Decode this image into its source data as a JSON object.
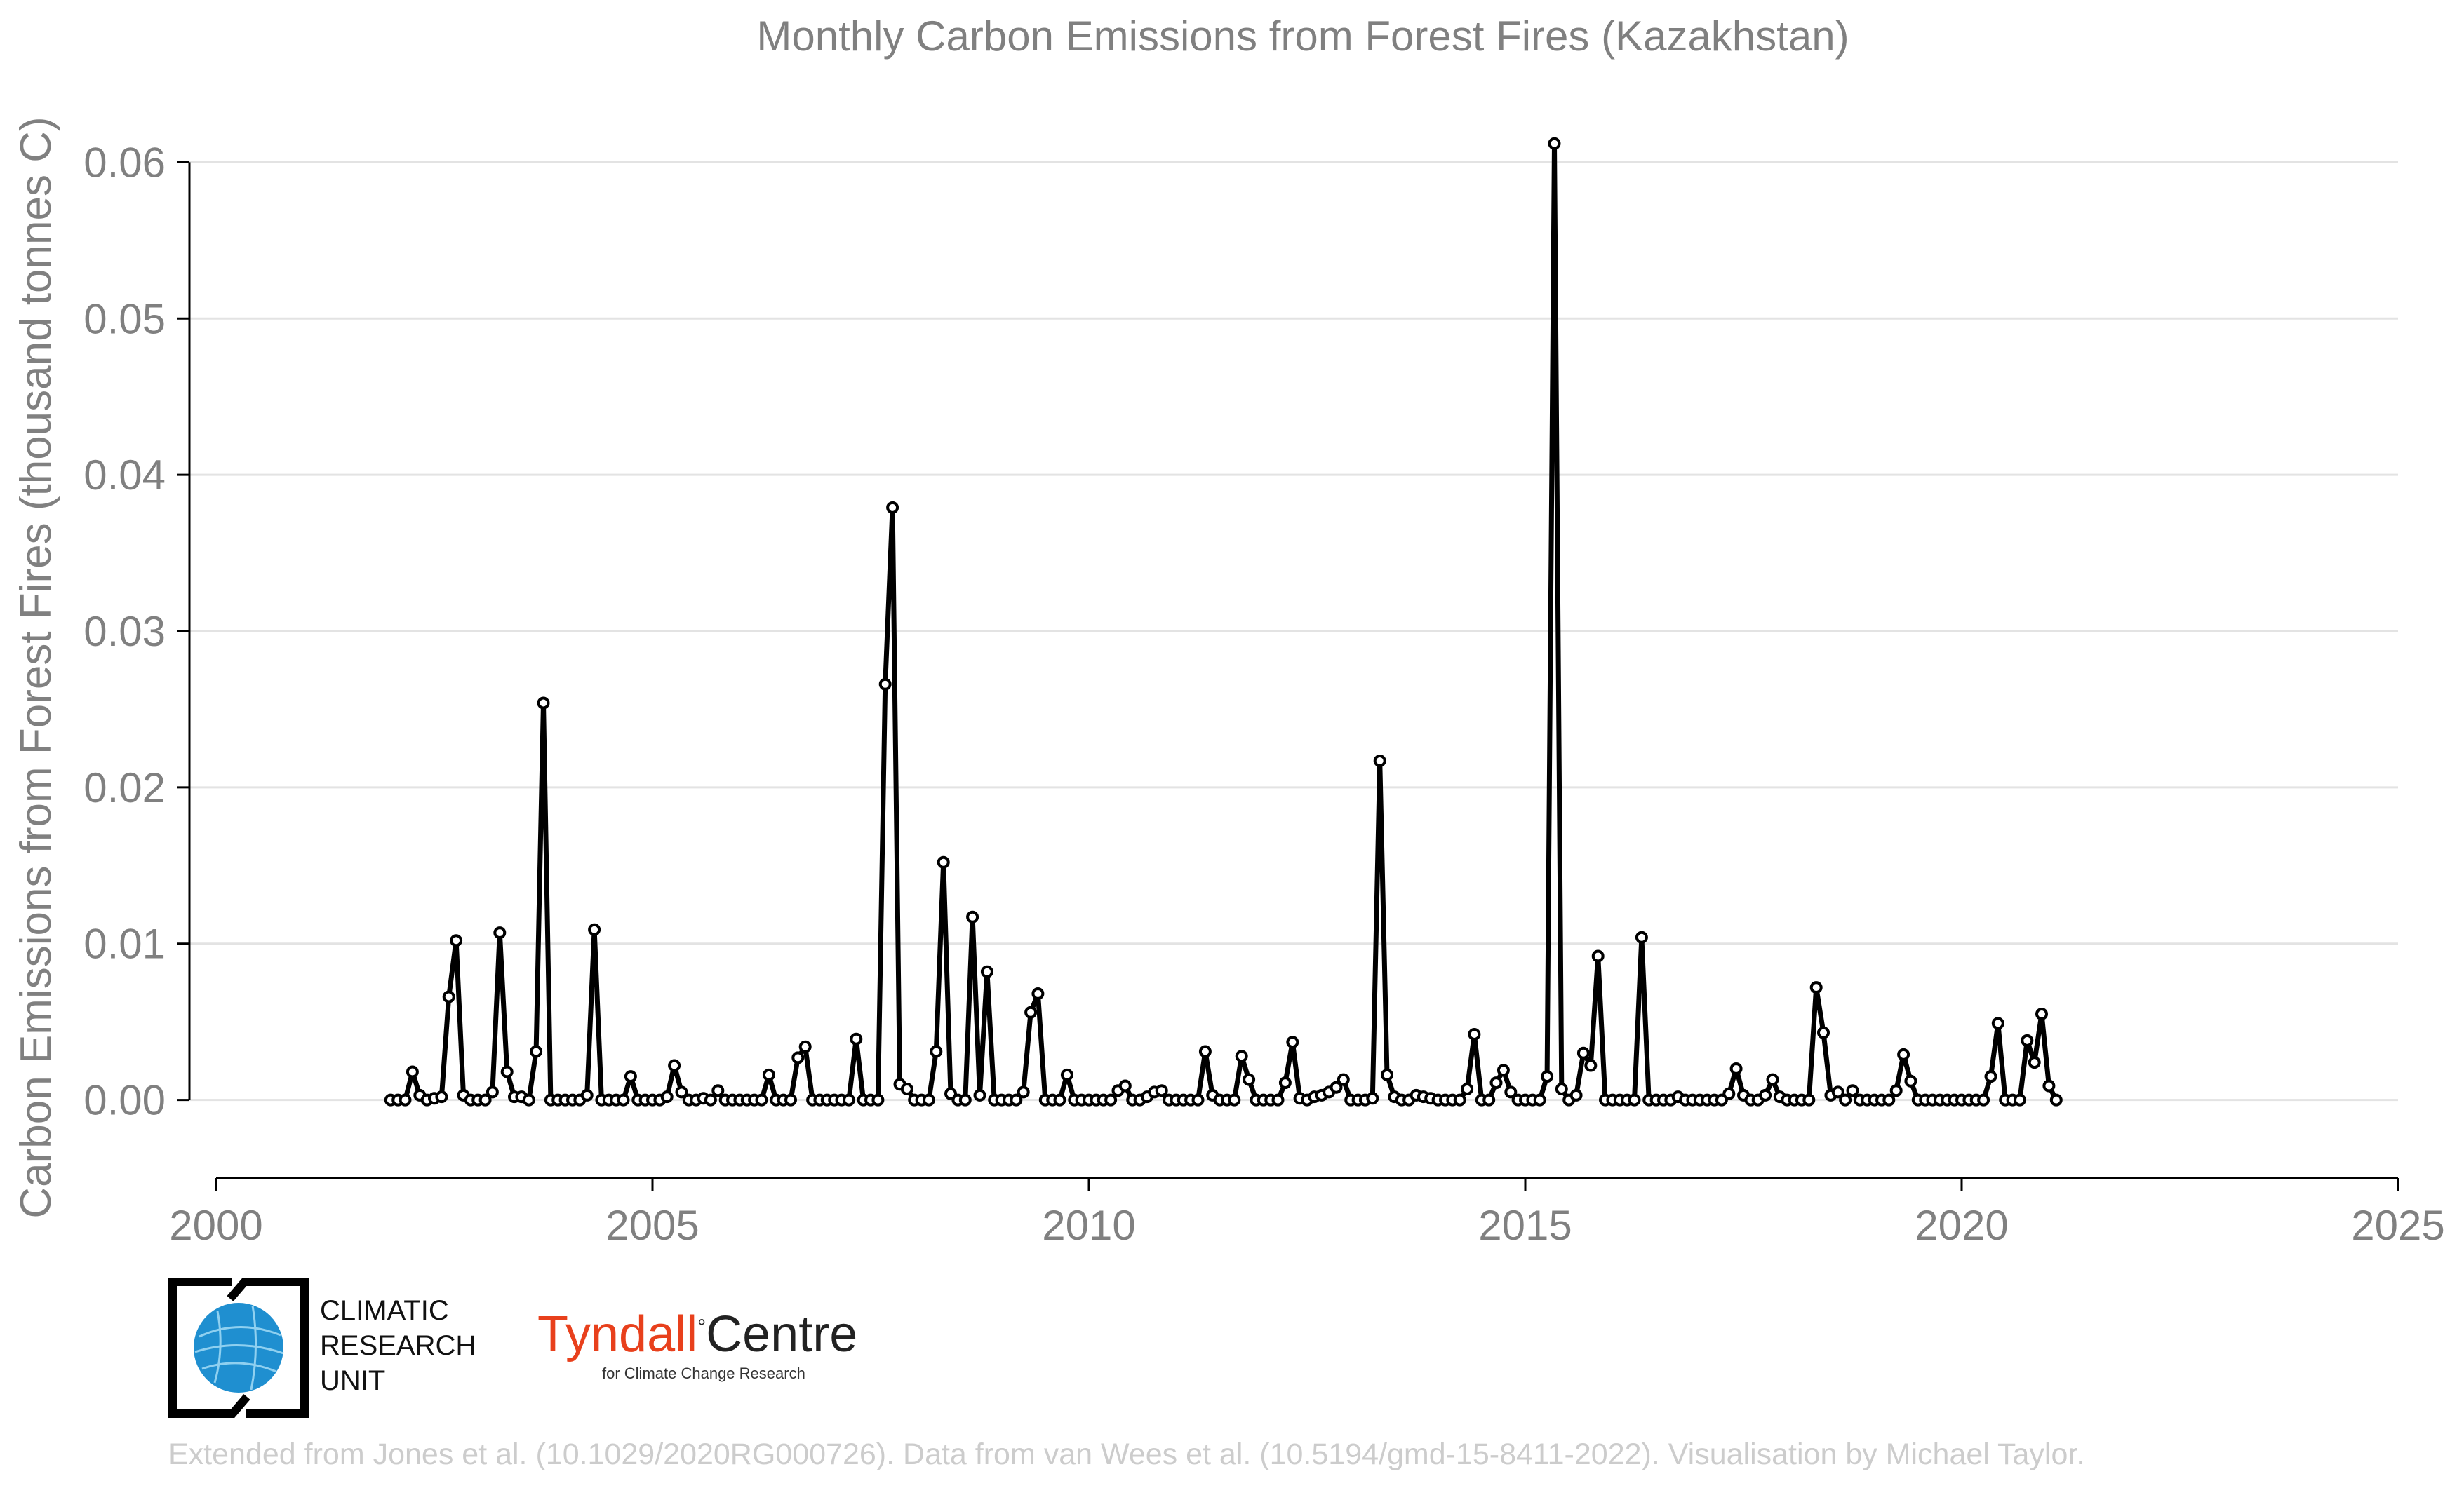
{
  "chart_data": {
    "type": "line",
    "title": "Monthly Carbon Emissions from Forest Fires (Kazakhstan)",
    "xlabel": "",
    "ylabel": "Carbon Emissions from Forest Fires (thousand tonnes C)",
    "xlim": [
      2000,
      2025
    ],
    "ylim": [
      -0.005,
      0.065
    ],
    "x_ticks": [
      "2000",
      "2005",
      "2010",
      "2015",
      "2020",
      "2025"
    ],
    "y_ticks": [
      "0.00",
      "0.01",
      "0.02",
      "0.03",
      "0.04",
      "0.05",
      "0.06"
    ],
    "grid": "horizontal",
    "series": [
      {
        "x_start": "2002-01",
        "x_step": "month",
        "values": [
          0,
          0,
          0,
          0.0018,
          0.0003,
          0,
          0.0001,
          0.0002,
          0.0066,
          0.0102,
          0.0003,
          0,
          0,
          0,
          0.0005,
          0.0107,
          0.0018,
          0.0002,
          0.0002,
          0,
          0.0031,
          0.0254,
          0,
          0,
          0,
          0,
          0,
          0.0003,
          0.0109,
          0,
          0,
          0,
          0,
          0.0015,
          0,
          0,
          0,
          0,
          0.0002,
          0.0022,
          0.0005,
          0,
          0,
          0.0001,
          0,
          0.0006,
          0,
          0,
          0,
          0,
          0,
          0,
          0.0016,
          0,
          0,
          0,
          0.0027,
          0.0034,
          0,
          0,
          0,
          0,
          0,
          0,
          0.0039,
          0,
          0,
          0,
          0.0266,
          0.0379,
          0.001,
          0.0007,
          0,
          0,
          0,
          0.0031,
          0.0152,
          0.0004,
          0,
          0,
          0.0117,
          0.0003,
          0.0082,
          0,
          0,
          0,
          0,
          0.0005,
          0.0056,
          0.0068,
          0,
          0,
          0,
          0.0016,
          0,
          0,
          0,
          0,
          0,
          0,
          0.0006,
          0.0009,
          0,
          0,
          0.0002,
          0.0005,
          0.0006,
          0,
          0,
          0,
          0,
          0,
          0.0031,
          0.0003,
          0,
          0,
          0,
          0.0028,
          0.0013,
          0,
          0,
          0,
          0,
          0.0011,
          0.0037,
          0.0001,
          0,
          0.0002,
          0.0003,
          0.0005,
          0.0008,
          0.0013,
          0,
          0,
          0,
          0.0001,
          0.0217,
          0.0016,
          0.0002,
          0,
          0,
          0.0003,
          0.0002,
          0.0001,
          0,
          0,
          0,
          0,
          0.0007,
          0.0042,
          0,
          0,
          0.0011,
          0.0019,
          0.0005,
          0,
          0,
          0,
          0,
          0.0015,
          0.0612,
          0.0007,
          0,
          0.0003,
          0.003,
          0.0022,
          0.0092,
          0,
          0,
          0,
          0,
          0,
          0.0104,
          0,
          0,
          0,
          0,
          0.0002,
          0,
          0,
          0,
          0,
          0,
          0,
          0.0004,
          0.002,
          0.0003,
          0,
          0,
          0.0003,
          0.0013,
          0.0002,
          0,
          0,
          0,
          0,
          0.0072,
          0.0043,
          0.0003,
          0.0005,
          0,
          0.0006,
          0,
          0,
          0,
          0,
          0,
          0.0006,
          0.0029,
          0.0012,
          0,
          0,
          0,
          0,
          0,
          0,
          0,
          0,
          0,
          0,
          0.0015,
          0.0049,
          0,
          0,
          0,
          0.0038,
          0.0024,
          0.0055,
          0.0009,
          0
        ]
      }
    ]
  },
  "logos": {
    "cru_text": [
      "CLIMATIC",
      "RESEARCH",
      "UNIT"
    ],
    "tyndall_name_1": "Tyndall",
    "tyndall_degree": "°",
    "tyndall_name_2": "Centre",
    "tyndall_sub": "for Climate Change Research"
  },
  "credit": "Extended from Jones et al. (10.1029/2020RG000726). Data from van Wees et al. (10.5194/gmd-15-8411-2022). Visualisation by Michael Taylor.",
  "colors": {
    "line": "#000000",
    "axis_text": "#808080",
    "grid": "#e3e3e3",
    "credit": "#cccccc",
    "cru_globe": "#1f8fd0",
    "tyndall_red": "#e8401c"
  }
}
